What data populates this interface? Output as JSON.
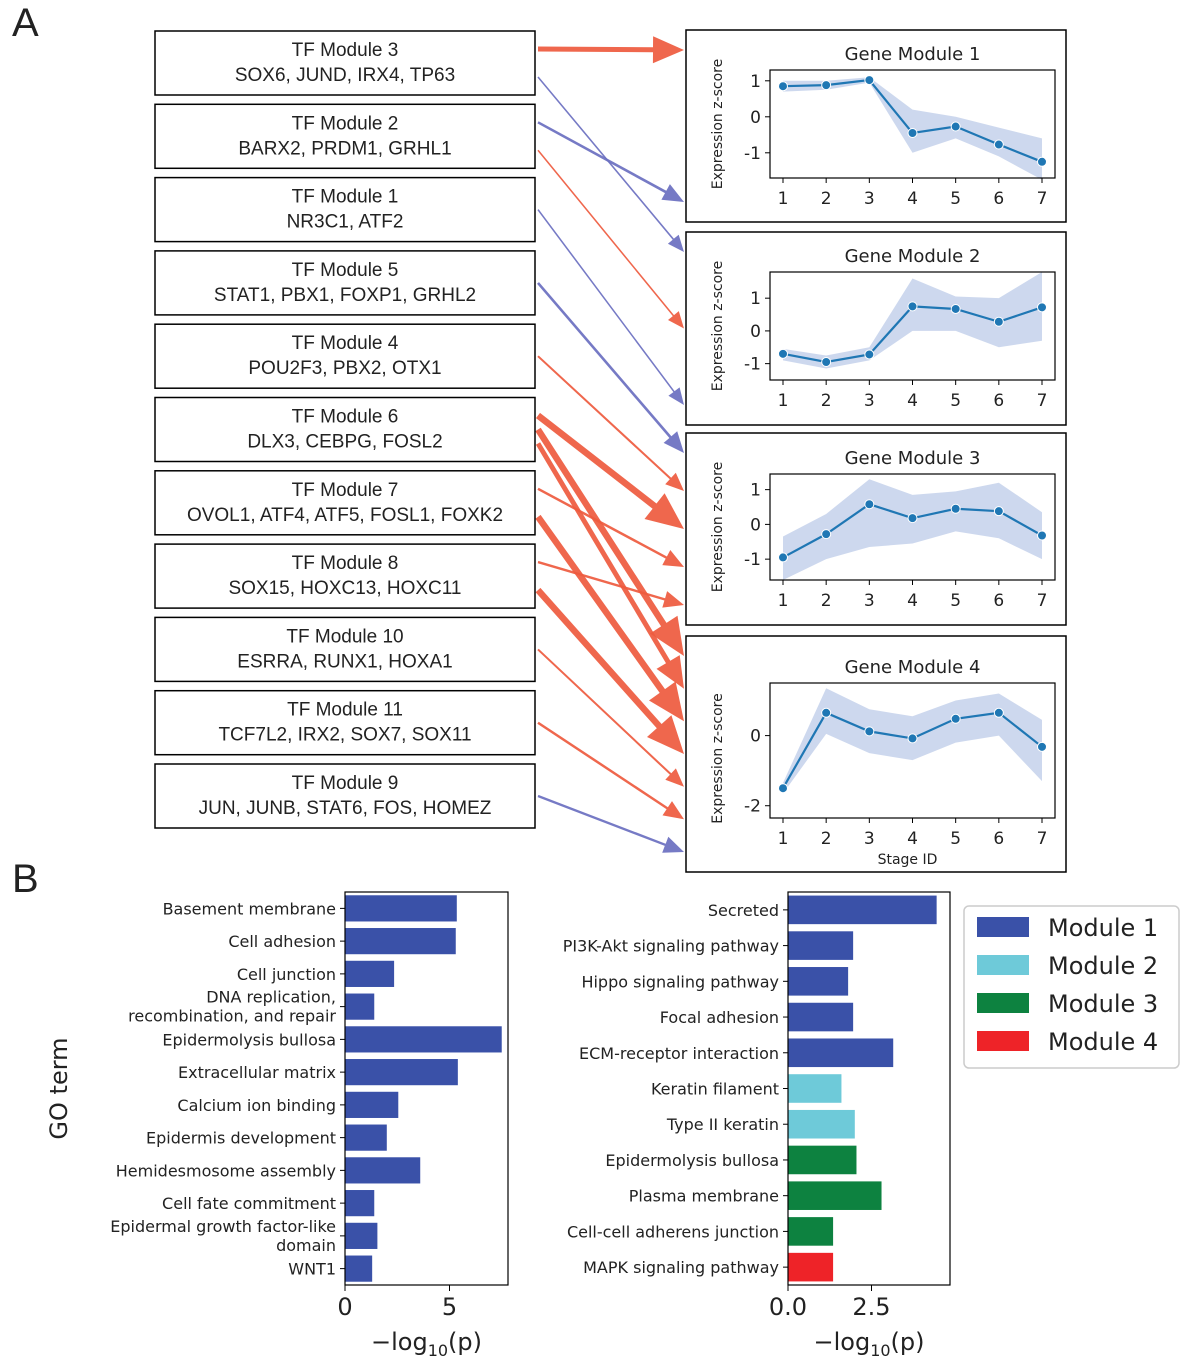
{
  "panel_labels": {
    "a": "A",
    "b": "B"
  },
  "colors": {
    "pos_arrow": "#ee5a3e",
    "neg_arrow": "#6a6fc0",
    "line": "#1f77b4",
    "band": "#c8d4ec",
    "module1": "#3a51a8",
    "module2": "#6ecad9",
    "module3": "#0d8240",
    "module4": "#ee2328"
  },
  "tf_modules": [
    {
      "title": "TF Module 3",
      "genes": "SOX6, JUND, IRX4, TP63"
    },
    {
      "title": "TF Module 2",
      "genes": "BARX2, PRDM1, GRHL1"
    },
    {
      "title": "TF Module 1",
      "genes": "NR3C1, ATF2"
    },
    {
      "title": "TF Module 5",
      "genes": "STAT1, PBX1, FOXP1, GRHL2"
    },
    {
      "title": "TF Module 4",
      "genes": "POU2F3, PBX2, OTX1"
    },
    {
      "title": "TF Module 6",
      "genes": "DLX3, CEBPG, FOSL2"
    },
    {
      "title": "TF Module 7",
      "genes": "OVOL1, ATF4, ATF5, FOSL1, FOXK2"
    },
    {
      "title": "TF Module 8",
      "genes": "SOX15, HOXC13, HOXC11"
    },
    {
      "title": "TF Module 10",
      "genes": "ESRRA, RUNX1, HOXA1"
    },
    {
      "title": "TF Module 11",
      "genes": "TCF7L2, IRX2, SOX7, SOX11"
    },
    {
      "title": "TF Module 9",
      "genes": "JUN, JUNB, STAT6, FOS, HOMEZ"
    }
  ],
  "regulation_arrows": [
    {
      "tf": 0,
      "gm": 0,
      "sign": "pos",
      "weight": 5
    },
    {
      "tf": 0,
      "gm": 1,
      "sign": "neg",
      "weight": 1.6
    },
    {
      "tf": 1,
      "gm": 0,
      "sign": "neg",
      "weight": 2.6
    },
    {
      "tf": 1,
      "gm": 1,
      "sign": "pos",
      "weight": 1.6
    },
    {
      "tf": 2,
      "gm": 1,
      "sign": "neg",
      "weight": 1.6
    },
    {
      "tf": 3,
      "gm": 2,
      "sign": "neg",
      "weight": 2.6
    },
    {
      "tf": 4,
      "gm": 2,
      "sign": "pos",
      "weight": 2
    },
    {
      "tf": 5,
      "gm": 2,
      "sign": "pos",
      "weight": 6.5
    },
    {
      "tf": 5,
      "gm": 3,
      "sign": "pos",
      "weight": 6.5
    },
    {
      "tf": 5,
      "gm": 3,
      "sign": "pos",
      "weight": 5
    },
    {
      "tf": 6,
      "gm": 2,
      "sign": "pos",
      "weight": 2.4
    },
    {
      "tf": 6,
      "gm": 3,
      "sign": "pos",
      "weight": 6.5
    },
    {
      "tf": 7,
      "gm": 2,
      "sign": "pos",
      "weight": 2.4
    },
    {
      "tf": 7,
      "gm": 3,
      "sign": "pos",
      "weight": 6.5
    },
    {
      "tf": 8,
      "gm": 3,
      "sign": "pos",
      "weight": 2
    },
    {
      "tf": 9,
      "gm": 3,
      "sign": "pos",
      "weight": 2.4
    },
    {
      "tf": 10,
      "gm": 3,
      "sign": "neg",
      "weight": 2.4
    }
  ],
  "chart_data": [
    {
      "type": "line",
      "title": "Gene Module 1",
      "ylabel": "Expression z-score",
      "xlabel": "",
      "x": [
        1,
        2,
        3,
        4,
        5,
        6,
        7
      ],
      "yticks": [
        1,
        0,
        -1
      ],
      "ylim": [
        -1.7,
        1.3
      ],
      "values": [
        0.85,
        0.88,
        1.02,
        -0.45,
        -0.27,
        -0.77,
        -1.25
      ],
      "band_low": [
        0.7,
        0.75,
        0.95,
        -1.0,
        -0.6,
        -1.1,
        -1.75
      ],
      "band_high": [
        1.0,
        1.0,
        1.1,
        0.2,
        0.0,
        -0.3,
        -0.6
      ]
    },
    {
      "type": "line",
      "title": "Gene Module 2",
      "ylabel": "Expression z-score",
      "xlabel": "",
      "x": [
        1,
        2,
        3,
        4,
        5,
        6,
        7
      ],
      "yticks": [
        1,
        0,
        -1
      ],
      "ylim": [
        -1.5,
        1.8
      ],
      "values": [
        -0.7,
        -0.95,
        -0.72,
        0.75,
        0.67,
        0.28,
        0.72
      ],
      "band_low": [
        -0.9,
        -1.15,
        -0.9,
        0.0,
        0.0,
        -0.5,
        -0.3
      ],
      "band_high": [
        -0.55,
        -0.75,
        -0.5,
        1.6,
        1.05,
        1.0,
        1.8
      ]
    },
    {
      "type": "line",
      "title": "Gene Module 3",
      "ylabel": "Expression z-score",
      "xlabel": "",
      "x": [
        1,
        2,
        3,
        4,
        5,
        6,
        7
      ],
      "yticks": [
        1,
        0,
        -1
      ],
      "ylim": [
        -1.6,
        1.45
      ],
      "values": [
        -0.95,
        -0.28,
        0.58,
        0.18,
        0.45,
        0.38,
        -0.32
      ],
      "band_low": [
        -1.6,
        -1.0,
        -0.65,
        -0.55,
        -0.2,
        -0.4,
        -1.0
      ],
      "band_high": [
        -0.35,
        0.3,
        1.3,
        0.85,
        0.95,
        1.2,
        0.35
      ]
    },
    {
      "type": "line",
      "title": "Gene Module 4",
      "ylabel": "Expression z-score",
      "xlabel": "Stage ID",
      "x": [
        1,
        2,
        3,
        4,
        5,
        6,
        7
      ],
      "yticks": [
        0,
        -2
      ],
      "ylim": [
        -2.35,
        1.5
      ],
      "values": [
        -1.5,
        0.65,
        0.12,
        -0.08,
        0.48,
        0.65,
        -0.32
      ],
      "band_low": [
        -1.65,
        0.05,
        -0.5,
        -0.7,
        -0.2,
        0.0,
        -1.3
      ],
      "band_high": [
        -1.35,
        1.35,
        0.75,
        0.55,
        1.0,
        1.2,
        0.45
      ]
    },
    {
      "type": "bar",
      "orientation": "horizontal",
      "categories": [
        "Basement membrane",
        "Cell adhesion",
        "Cell junction",
        "DNA replication,|recombination, and repair",
        "Epidermolysis bullosa",
        "Extracellular matrix",
        "Calcium ion binding",
        "Epidermis development",
        "Hemidesmosome assembly",
        "Cell fate commitment",
        "Epidermal growth factor-like|domain",
        "WNT1"
      ],
      "values": [
        5.35,
        5.3,
        2.35,
        1.4,
        7.5,
        5.4,
        2.55,
        2.0,
        3.6,
        1.4,
        1.55,
        1.3
      ],
      "modules": [
        1,
        1,
        1,
        1,
        1,
        1,
        1,
        1,
        1,
        1,
        1,
        1
      ],
      "xticks": [
        0,
        5
      ],
      "xlim": [
        0,
        7.8
      ],
      "ylabel": "GO term",
      "xlabel_main": "−log",
      "xlabel_sub": "10",
      "xlabel_tail": "(p)"
    },
    {
      "type": "bar",
      "orientation": "horizontal",
      "categories": [
        "Secreted",
        "PI3K-Akt signaling pathway",
        "Hippo signaling pathway",
        "Focal adhesion",
        "ECM-receptor interaction",
        "Keratin filament",
        "Type II keratin",
        "Epidermolysis bullosa",
        "Plasma membrane",
        "Cell-cell adherens junction",
        "MAPK signaling pathway"
      ],
      "values": [
        4.45,
        1.95,
        1.8,
        1.95,
        3.15,
        1.6,
        2.0,
        2.05,
        2.8,
        1.35,
        1.35
      ],
      "modules": [
        1,
        1,
        1,
        1,
        1,
        2,
        2,
        3,
        3,
        3,
        4
      ],
      "xticks": [
        0.0,
        2.5
      ],
      "xtick_labels": [
        "0.0",
        "2.5"
      ],
      "xlim": [
        0,
        4.85
      ],
      "xlabel_main": "−log",
      "xlabel_sub": "10",
      "xlabel_tail": "(p)"
    }
  ],
  "legend": [
    {
      "label": "Module 1",
      "module": 1
    },
    {
      "label": "Module 2",
      "module": 2
    },
    {
      "label": "Module 3",
      "module": 3
    },
    {
      "label": "Module 4",
      "module": 4
    }
  ]
}
